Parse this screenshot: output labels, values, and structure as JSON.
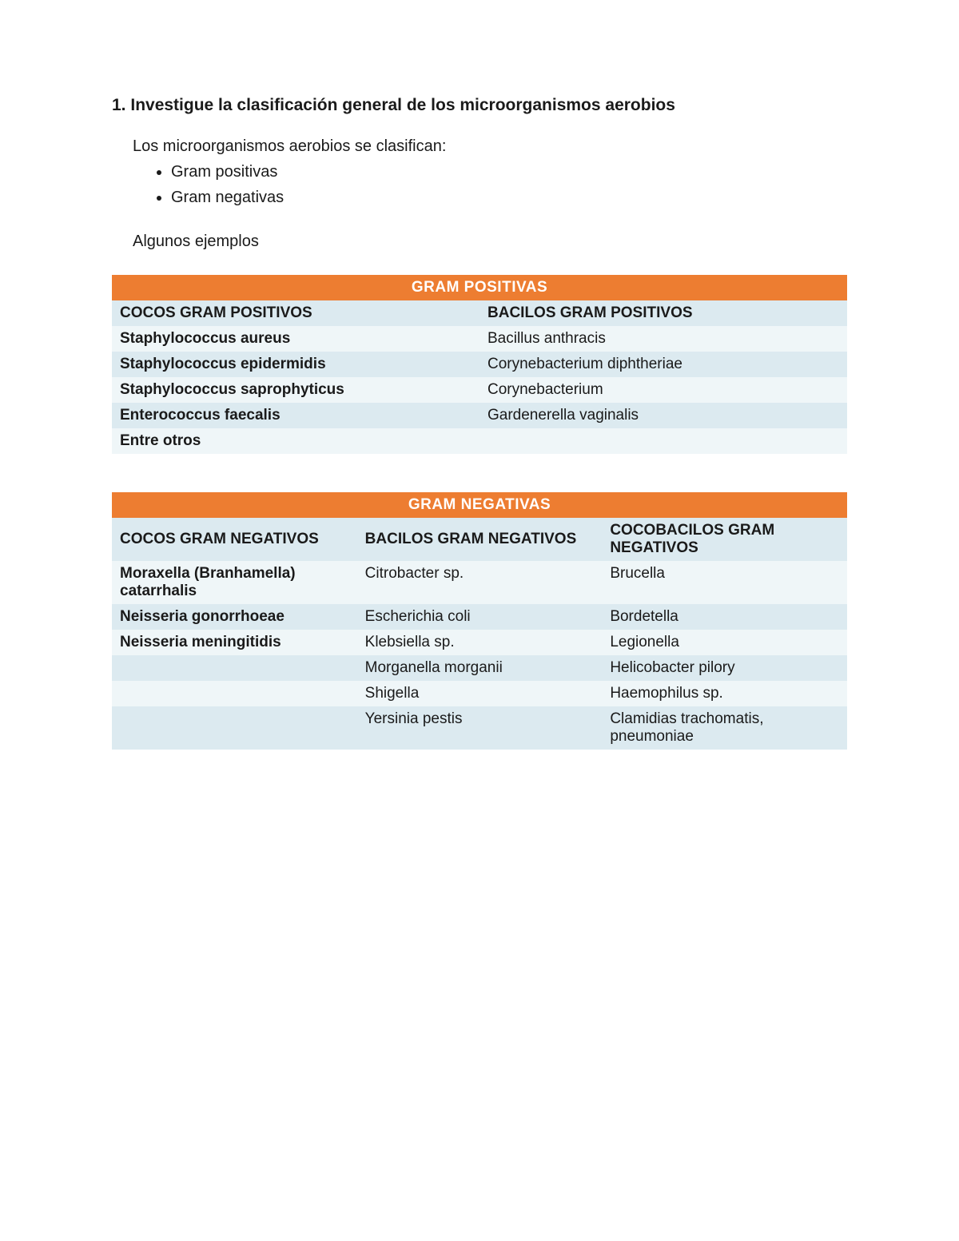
{
  "heading_number": "1.",
  "heading_text": "Investigue la clasificación general de los microorganismos aerobios",
  "intro": "Los microorganismos aerobios se clasifican:",
  "bullets": [
    "Gram positivas",
    "Gram negativas"
  ],
  "examples_label": "Algunos ejemplos",
  "colors": {
    "header_bg": "#ed7d31",
    "header_fg": "#ffffff",
    "row_light": "#eff6f8",
    "row_dark": "#dceaf0",
    "text": "#1a1a1a"
  },
  "table1": {
    "title": "GRAM POSITIVAS",
    "columns": [
      "COCOS GRAM POSITIVOS",
      "BACILOS GRAM POSITIVOS"
    ],
    "rows": [
      [
        "Staphylococcus aureus",
        "Bacillus anthracis"
      ],
      [
        "Staphylococcus epidermidis",
        "Corynebacterium diphtheriae"
      ],
      [
        "Staphylococcus saprophyticus",
        "Corynebacterium"
      ],
      [
        "Enterococcus faecalis",
        "Gardenerella vaginalis"
      ],
      [
        "Entre otros",
        ""
      ]
    ],
    "col0_bold": true
  },
  "table2": {
    "title": "GRAM NEGATIVAS",
    "columns": [
      "COCOS GRAM NEGATIVOS",
      "BACILOS GRAM NEGATIVOS",
      "COCOBACILOS GRAM NEGATIVOS"
    ],
    "rows": [
      [
        "Moraxella (Branhamella) catarrhalis",
        "Citrobacter sp.",
        "Brucella"
      ],
      [
        "Neisseria gonorrhoeae",
        "Escherichia coli",
        "Bordetella"
      ],
      [
        "Neisseria meningitidis",
        "Klebsiella sp.",
        "Legionella"
      ],
      [
        "",
        "Morganella morganii",
        "Helicobacter pilory"
      ],
      [
        "",
        "Shigella",
        "Haemophilus sp."
      ],
      [
        "",
        "Yersinia pestis",
        "Clamidias trachomatis, pneumoniae"
      ]
    ],
    "col0_bold": true
  }
}
